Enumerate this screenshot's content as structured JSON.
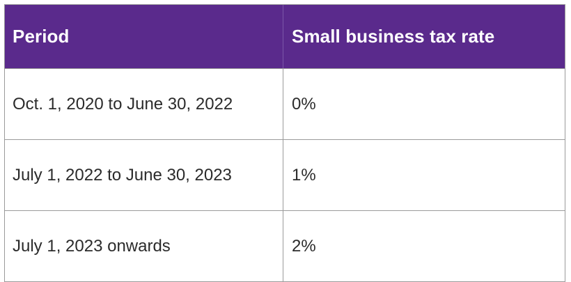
{
  "table": {
    "headers": [
      "Period",
      "Small business tax rate"
    ],
    "rows": [
      [
        "Oct. 1, 2020 to June 30, 2022",
        "0%"
      ],
      [
        "July 1, 2022 to June 30, 2023",
        "1%"
      ],
      [
        "July 1, 2023 onwards",
        "2%"
      ]
    ]
  },
  "colors": {
    "header_background": "#5a2a8c",
    "header_text": "#ffffff",
    "border": "#9a9a9a",
    "body_text": "#2b2b2b"
  }
}
